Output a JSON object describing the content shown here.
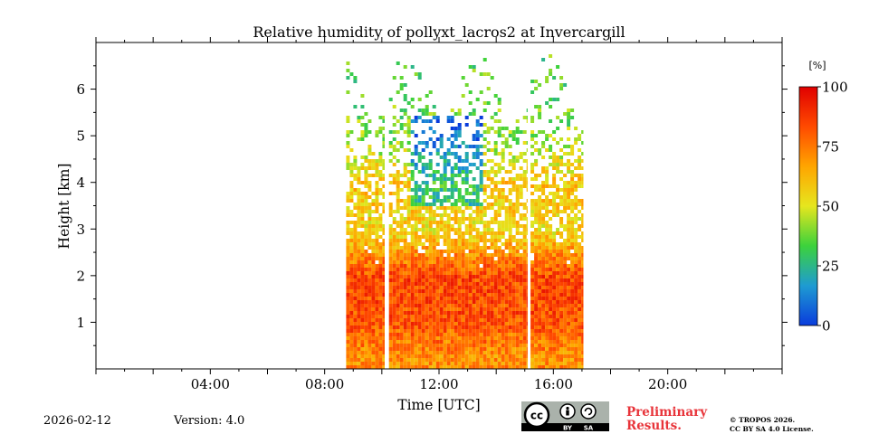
{
  "chart_data": {
    "type": "heatmap",
    "title": "Relative humidity of pollyxt_lacros2 at Invercargill",
    "xlabel": "Time [UTC]",
    "ylabel": "Height [km]",
    "xlim": [
      0,
      24
    ],
    "ylim": [
      0,
      7
    ],
    "x_ticks": [
      {
        "value": 4,
        "label": "04:00"
      },
      {
        "value": 8,
        "label": "08:00"
      },
      {
        "value": 12,
        "label": "12:00"
      },
      {
        "value": 16,
        "label": "16:00"
      },
      {
        "value": 20,
        "label": "20:00"
      }
    ],
    "y_ticks": [
      {
        "value": 1,
        "label": "1"
      },
      {
        "value": 2,
        "label": "2"
      },
      {
        "value": 3,
        "label": "3"
      },
      {
        "value": 4,
        "label": "4"
      },
      {
        "value": 5,
        "label": "5"
      },
      {
        "value": 6,
        "label": "6"
      }
    ],
    "colorbar": {
      "unit": "[%]",
      "range": [
        0,
        100
      ],
      "ticks": [
        {
          "value": 0,
          "label": "0"
        },
        {
          "value": 25,
          "label": "25"
        },
        {
          "value": 50,
          "label": "50"
        },
        {
          "value": 75,
          "label": "75"
        },
        {
          "value": 100,
          "label": "100"
        }
      ],
      "colors": [
        "#0a3cdc",
        "#1e9bd2",
        "#3cd23c",
        "#e6e61e",
        "#ffa500",
        "#ff4a00",
        "#e00000"
      ]
    },
    "data_segments": [
      {
        "start": 8.75,
        "end": 10.1
      },
      {
        "start": 10.25,
        "end": 15.1
      },
      {
        "start": 15.2,
        "end": 17.05
      }
    ],
    "approx_profile_km_percent": [
      {
        "height": 0.3,
        "rh": 70
      },
      {
        "height": 1.0,
        "rh": 82
      },
      {
        "height": 2.0,
        "rh": 85
      },
      {
        "height": 3.0,
        "rh": 55
      },
      {
        "height": 4.0,
        "rh": 60
      },
      {
        "height": 5.0,
        "rh": 40
      },
      {
        "height": 6.0,
        "rh": 35
      }
    ]
  },
  "footer": {
    "date": "2026-02-12",
    "version": "Version: 4.0",
    "preliminary_line1": "Preliminary",
    "preliminary_line2": "Results.",
    "copyright_line1": "© TROPOS 2026.",
    "copyright_line2": "CC BY SA 4.0 License.",
    "license_badge": {
      "cc": "cc",
      "by": "BY",
      "sa": "SA"
    }
  }
}
